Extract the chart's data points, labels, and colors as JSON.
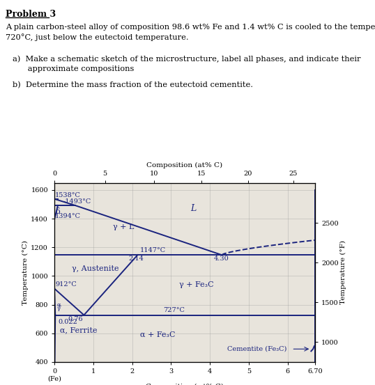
{
  "fig_bg": "#e8e4dc",
  "line_color": "#1a237e",
  "grid_color": "#999999",
  "xlabel": "Composition (wt% C)",
  "ylabel_left": "Temperature (°C)",
  "ylabel_right": "Temperature (°F)",
  "xlabel_top": "Composition (at% C)",
  "xticks_bottom": [
    0,
    1,
    2,
    3,
    4,
    5,
    6,
    6.7
  ],
  "yticks_left": [
    400,
    600,
    800,
    1000,
    1200,
    1400,
    1600
  ],
  "ytick_labels_right_vals": [
    1000,
    1500,
    2000,
    2500
  ],
  "xlim": [
    0,
    6.7
  ],
  "ylim": [
    400,
    1650
  ],
  "ax2_tick_wt": [
    0,
    1.3,
    2.56,
    3.78,
    4.98,
    6.14
  ],
  "ax2_tick_labels": [
    "0",
    "5",
    "10",
    "15",
    "20",
    "25"
  ],
  "phase_lines": {
    "lc": "#1a237e",
    "lw": 1.4
  }
}
